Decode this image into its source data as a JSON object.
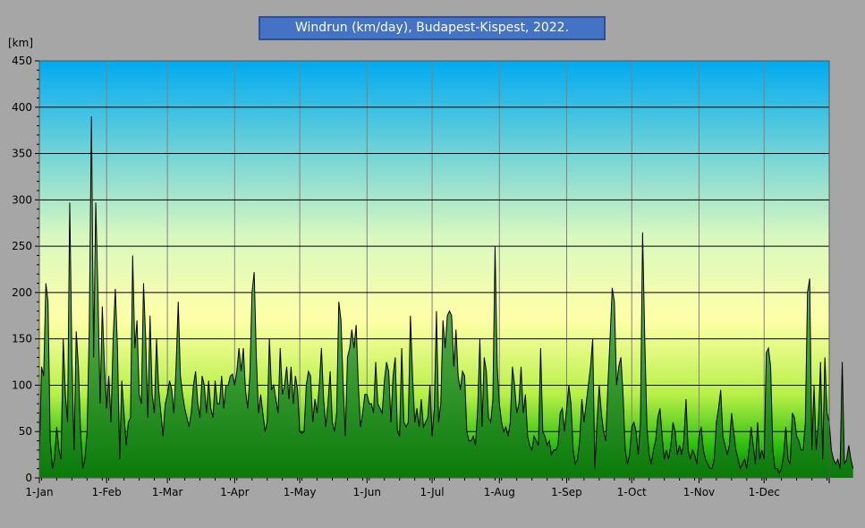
{
  "chart_data": {
    "type": "area",
    "title": "Windrun (km/day), Budapest-Kispest, 2022.",
    "ylabel": "[km]",
    "xlabel": "",
    "ylim": [
      0,
      450
    ],
    "yticks": [
      0,
      50,
      100,
      150,
      200,
      250,
      300,
      350,
      400,
      450
    ],
    "xlim": [
      1,
      365
    ],
    "month_labels": [
      "1-Jan",
      "1-Feb",
      "1-Mar",
      "1-Apr",
      "1-May",
      "1-Jun",
      "1-Jul",
      "1-Aug",
      "1-Sep",
      "1-Oct",
      "1-Nov",
      "1-Dec"
    ],
    "month_days": [
      1,
      32,
      60,
      91,
      121,
      152,
      182,
      213,
      244,
      274,
      305,
      335
    ],
    "grid": true,
    "series": [
      {
        "values": [
          20,
          120,
          110,
          210,
          190,
          40,
          10,
          20,
          55,
          30,
          20,
          150,
          90,
          60,
          297,
          130,
          30,
          158,
          120,
          50,
          10,
          20,
          50,
          160,
          390,
          130,
          297,
          200,
          80,
          185,
          120,
          75,
          110,
          60,
          150,
          204,
          140,
          20,
          105,
          70,
          35,
          60,
          65,
          240,
          140,
          170,
          90,
          80,
          210,
          150,
          65,
          175,
          90,
          70,
          150,
          95,
          70,
          45,
          80,
          90,
          105,
          95,
          70,
          120,
          190,
          110,
          90,
          75,
          65,
          55,
          70,
          100,
          115,
          80,
          65,
          110,
          100,
          70,
          105,
          75,
          65,
          105,
          80,
          80,
          110,
          75,
          100,
          100,
          110,
          112,
          100,
          115,
          140,
          115,
          140,
          95,
          75,
          110,
          200,
          222,
          130,
          70,
          90,
          70,
          50,
          60,
          150,
          95,
          100,
          85,
          70,
          140,
          90,
          100,
          120,
          85,
          120,
          80,
          110,
          95,
          50,
          48,
          50,
          100,
          115,
          110,
          60,
          85,
          70,
          100,
          140,
          85,
          55,
          80,
          115,
          60,
          50,
          70,
          190,
          170,
          100,
          45,
          130,
          140,
          160,
          140,
          165,
          100,
          55,
          70,
          90,
          90,
          80,
          80,
          70,
          125,
          80,
          75,
          70,
          105,
          125,
          115,
          60,
          110,
          130,
          50,
          45,
          140,
          60,
          55,
          60,
          175,
          110,
          60,
          75,
          55,
          85,
          55,
          60,
          65,
          100,
          45,
          75,
          180,
          60,
          80,
          170,
          140,
          175,
          180,
          175,
          120,
          160,
          110,
          95,
          115,
          110,
          50,
          40,
          40,
          45,
          35,
          75,
          150,
          55,
          130,
          115,
          65,
          60,
          85,
          250,
          120,
          80,
          60,
          50,
          55,
          45,
          60,
          120,
          100,
          70,
          80,
          120,
          70,
          90,
          45,
          35,
          30,
          45,
          40,
          35,
          140,
          50,
          45,
          35,
          40,
          25,
          30,
          30,
          35,
          70,
          75,
          50,
          75,
          100,
          80,
          30,
          15,
          20,
          40,
          85,
          60,
          80,
          100,
          120,
          150,
          10,
          60,
          100,
          70,
          50,
          40,
          100,
          150,
          205,
          190,
          100,
          120,
          130,
          90,
          30,
          15,
          25,
          55,
          60,
          50,
          25,
          60,
          265,
          150,
          55,
          25,
          15,
          30,
          40,
          65,
          75,
          45,
          20,
          30,
          20,
          35,
          60,
          50,
          25,
          35,
          25,
          40,
          85,
          30,
          20,
          30,
          25,
          15,
          45,
          55,
          30,
          20,
          15,
          10,
          10,
          20,
          60,
          75,
          95,
          45,
          35,
          25,
          35,
          70,
          50,
          30,
          20,
          10,
          15,
          20,
          10,
          30,
          55,
          35,
          15,
          60,
          20,
          30,
          20,
          135,
          140,
          120,
          30,
          10,
          10,
          5,
          10,
          25,
          55,
          20,
          15,
          70,
          65,
          45,
          40,
          30,
          30,
          60,
          200,
          215,
          30,
          100,
          30,
          60,
          125,
          20,
          130,
          70,
          60,
          30,
          20,
          15,
          20,
          10,
          125,
          15,
          20,
          35,
          20,
          10
        ]
      }
    ]
  }
}
